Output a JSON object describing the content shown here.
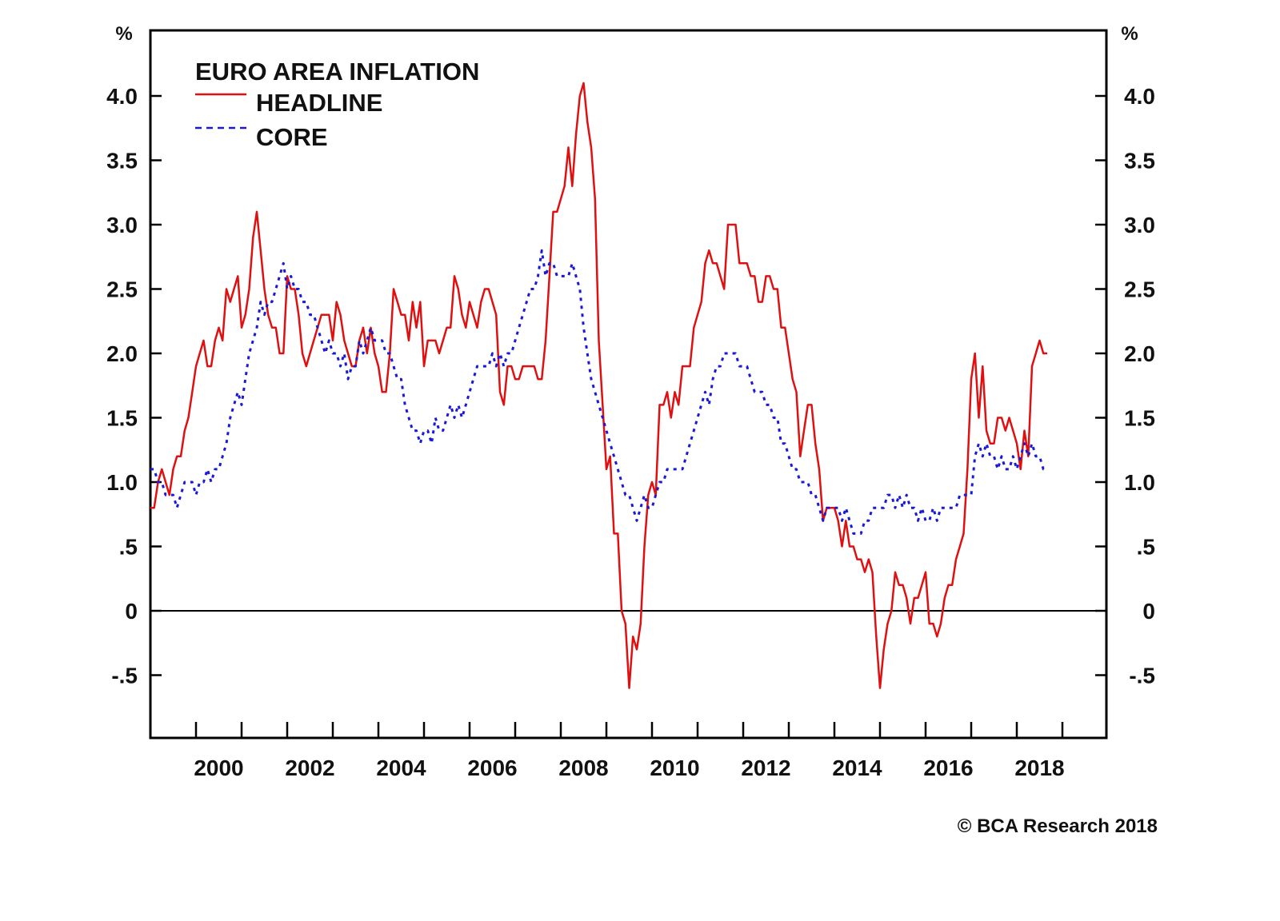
{
  "chart_data": {
    "type": "line",
    "title": "EURO AREA INFLATION",
    "ylabel_left": "%",
    "ylabel_right": "%",
    "xlabel": "",
    "ylim": [
      -1.0,
      4.5
    ],
    "xlim": [
      1999.0,
      2020.0
    ],
    "grid": false,
    "legend_placement": "top-left",
    "yticks": [
      -0.5,
      0,
      0.5,
      1.0,
      1.5,
      2.0,
      2.5,
      3.0,
      3.5,
      4.0
    ],
    "ytick_labels": [
      "-.5",
      "0",
      ".5",
      "1.0",
      "1.5",
      "2.0",
      "2.5",
      "3.0",
      "3.5",
      "4.0"
    ],
    "xticks_years": [
      2000,
      2001,
      2002,
      2003,
      2004,
      2005,
      2006,
      2007,
      2008,
      2009,
      2010,
      2011,
      2012,
      2013,
      2014,
      2015,
      2016,
      2017,
      2018,
      2019
    ],
    "xtick_labels": [
      "2000",
      "2002",
      "2004",
      "2006",
      "2008",
      "2010",
      "2012",
      "2014",
      "2016",
      "2018"
    ],
    "xlabel_years": [
      2000,
      2002,
      2004,
      2006,
      2008,
      2010,
      2012,
      2014,
      2016,
      2018
    ],
    "zero_line": 0,
    "start": "1999-01",
    "frequency": "monthly",
    "series": [
      {
        "name": "HEADLINE",
        "color": "#e01010",
        "style": "solid",
        "values": [
          0.8,
          0.8,
          1.0,
          1.1,
          1.0,
          0.9,
          1.1,
          1.2,
          1.2,
          1.4,
          1.5,
          1.7,
          1.9,
          2.0,
          2.1,
          1.9,
          1.9,
          2.1,
          2.2,
          2.1,
          2.5,
          2.4,
          2.5,
          2.6,
          2.2,
          2.3,
          2.5,
          2.9,
          3.1,
          2.8,
          2.5,
          2.3,
          2.2,
          2.2,
          2.0,
          2.0,
          2.6,
          2.5,
          2.5,
          2.3,
          2.0,
          1.9,
          2.0,
          2.1,
          2.2,
          2.3,
          2.3,
          2.3,
          2.1,
          2.4,
          2.3,
          2.1,
          2.0,
          1.9,
          1.9,
          2.1,
          2.2,
          2.0,
          2.2,
          2.0,
          1.9,
          1.7,
          1.7,
          2.0,
          2.5,
          2.4,
          2.3,
          2.3,
          2.1,
          2.4,
          2.2,
          2.4,
          1.9,
          2.1,
          2.1,
          2.1,
          2.0,
          2.1,
          2.2,
          2.2,
          2.6,
          2.5,
          2.3,
          2.2,
          2.4,
          2.3,
          2.2,
          2.4,
          2.5,
          2.5,
          2.4,
          2.3,
          1.7,
          1.6,
          1.9,
          1.9,
          1.8,
          1.8,
          1.9,
          1.9,
          1.9,
          1.9,
          1.8,
          1.8,
          2.1,
          2.6,
          3.1,
          3.1,
          3.2,
          3.3,
          3.6,
          3.3,
          3.7,
          4.0,
          4.1,
          3.8,
          3.6,
          3.2,
          2.1,
          1.6,
          1.1,
          1.2,
          0.6,
          0.6,
          0.0,
          -0.1,
          -0.6,
          -0.2,
          -0.3,
          -0.1,
          0.5,
          0.9,
          1.0,
          0.9,
          1.6,
          1.6,
          1.7,
          1.5,
          1.7,
          1.6,
          1.9,
          1.9,
          1.9,
          2.2,
          2.3,
          2.4,
          2.7,
          2.8,
          2.7,
          2.7,
          2.6,
          2.5,
          3.0,
          3.0,
          3.0,
          2.7,
          2.7,
          2.7,
          2.6,
          2.6,
          2.4,
          2.4,
          2.6,
          2.6,
          2.5,
          2.5,
          2.2,
          2.2,
          2.0,
          1.8,
          1.7,
          1.2,
          1.4,
          1.6,
          1.6,
          1.3,
          1.1,
          0.7,
          0.8,
          0.8,
          0.8,
          0.7,
          0.5,
          0.7,
          0.5,
          0.5,
          0.4,
          0.4,
          0.3,
          0.4,
          0.3,
          -0.2,
          -0.6,
          -0.3,
          -0.1,
          0.0,
          0.3,
          0.2,
          0.2,
          0.1,
          -0.1,
          0.1,
          0.1,
          0.2,
          0.3,
          -0.1,
          -0.1,
          -0.2,
          -0.1,
          0.1,
          0.2,
          0.2,
          0.4,
          0.5,
          0.6,
          1.1,
          1.8,
          2.0,
          1.5,
          1.9,
          1.4,
          1.3,
          1.3,
          1.5,
          1.5,
          1.4,
          1.5,
          1.4,
          1.3,
          1.1,
          1.4,
          1.2,
          1.9,
          2.0,
          2.1,
          2.0,
          2.0
        ]
      },
      {
        "name": "CORE",
        "color": "#1a1ad6",
        "style": "dashed",
        "values": [
          1.1,
          1.1,
          1.0,
          1.0,
          0.9,
          0.9,
          0.9,
          0.8,
          0.9,
          1.0,
          1.0,
          1.0,
          0.9,
          1.0,
          1.0,
          1.1,
          1.0,
          1.1,
          1.1,
          1.2,
          1.3,
          1.5,
          1.6,
          1.7,
          1.6,
          1.8,
          2.0,
          2.1,
          2.2,
          2.4,
          2.3,
          2.4,
          2.4,
          2.5,
          2.6,
          2.7,
          2.5,
          2.6,
          2.5,
          2.5,
          2.4,
          2.4,
          2.3,
          2.3,
          2.2,
          2.1,
          2.0,
          2.1,
          2.0,
          2.0,
          1.9,
          2.0,
          1.8,
          1.9,
          1.9,
          2.1,
          2.0,
          2.1,
          2.2,
          2.1,
          2.1,
          2.1,
          2.0,
          2.0,
          1.9,
          1.8,
          1.8,
          1.6,
          1.5,
          1.4,
          1.4,
          1.3,
          1.4,
          1.4,
          1.3,
          1.5,
          1.4,
          1.4,
          1.5,
          1.6,
          1.5,
          1.6,
          1.5,
          1.6,
          1.7,
          1.8,
          1.9,
          1.9,
          1.9,
          1.9,
          2.0,
          1.9,
          2.0,
          1.9,
          2.0,
          2.0,
          2.1,
          2.2,
          2.3,
          2.4,
          2.5,
          2.5,
          2.6,
          2.8,
          2.6,
          2.7,
          2.7,
          2.6,
          2.6,
          2.6,
          2.6,
          2.7,
          2.6,
          2.5,
          2.2,
          2.0,
          1.8,
          1.7,
          1.6,
          1.5,
          1.4,
          1.3,
          1.2,
          1.1,
          1.0,
          0.9,
          0.9,
          0.8,
          0.7,
          0.8,
          0.9,
          0.8,
          0.8,
          0.9,
          1.0,
          1.0,
          1.1,
          1.1,
          1.1,
          1.1,
          1.1,
          1.2,
          1.3,
          1.4,
          1.5,
          1.6,
          1.7,
          1.6,
          1.8,
          1.9,
          1.9,
          2.0,
          2.0,
          2.0,
          2.0,
          1.9,
          1.9,
          1.9,
          1.8,
          1.7,
          1.7,
          1.7,
          1.6,
          1.6,
          1.5,
          1.5,
          1.3,
          1.3,
          1.2,
          1.1,
          1.1,
          1.0,
          1.0,
          1.0,
          0.9,
          0.9,
          0.8,
          0.7,
          0.8,
          0.8,
          0.8,
          0.8,
          0.7,
          0.8,
          0.7,
          0.6,
          0.6,
          0.6,
          0.7,
          0.7,
          0.8,
          0.8,
          0.8,
          0.8,
          0.9,
          0.9,
          0.8,
          0.9,
          0.8,
          0.9,
          0.8,
          0.8,
          0.7,
          0.8,
          0.7,
          0.7,
          0.8,
          0.7,
          0.8,
          0.8,
          0.8,
          0.8,
          0.8,
          0.9,
          0.9,
          0.9,
          0.9,
          1.2,
          1.3,
          1.2,
          1.3,
          1.2,
          1.2,
          1.1,
          1.2,
          1.1,
          1.1,
          1.2,
          1.1,
          1.2,
          1.3,
          1.2,
          1.3,
          1.2,
          1.2,
          1.1,
          1.1
        ]
      }
    ]
  },
  "legend": {
    "title": "EURO AREA INFLATION",
    "items": [
      {
        "label": "HEADLINE",
        "color": "#e01010",
        "style": "solid"
      },
      {
        "label": "CORE",
        "color": "#1a1ad6",
        "style": "dashed"
      }
    ]
  },
  "axis_unit_left": "%",
  "axis_unit_right": "%",
  "credit": "© BCA Research 2018"
}
